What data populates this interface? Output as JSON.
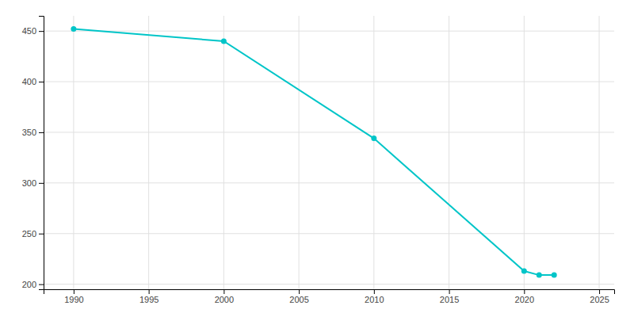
{
  "chart_data": {
    "type": "line",
    "x": [
      1990,
      2000,
      2010,
      2020,
      2021,
      2022
    ],
    "values": [
      452,
      440,
      344,
      213,
      209,
      209
    ],
    "color": "#00c5c8",
    "marker": "circle",
    "xlim": [
      1988,
      2026
    ],
    "ylim": [
      195,
      465
    ],
    "xticks": [
      1990,
      1995,
      2000,
      2005,
      2010,
      2015,
      2020,
      2025
    ],
    "yticks": [
      200,
      250,
      300,
      350,
      400,
      450
    ],
    "grid": true
  }
}
